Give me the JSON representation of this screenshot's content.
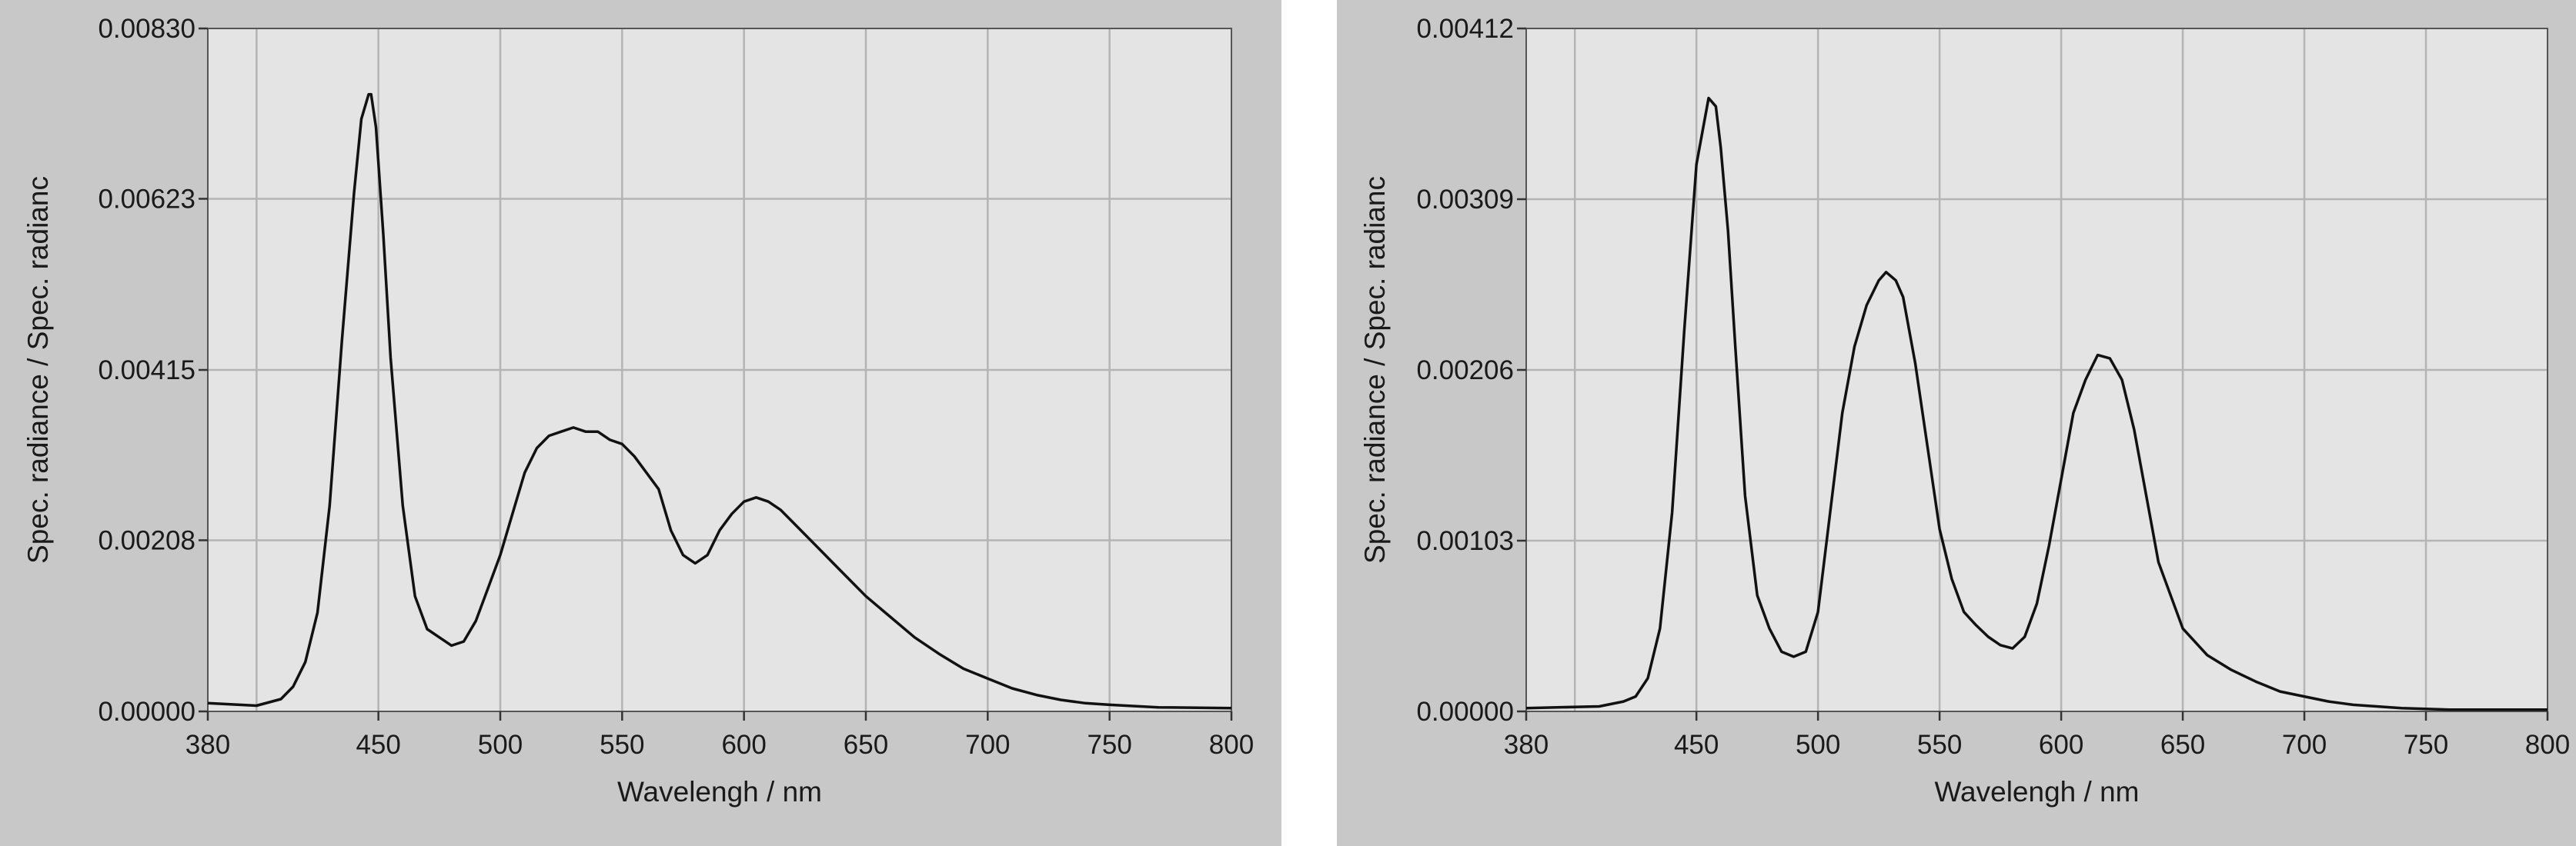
{
  "chart_data": [
    {
      "type": "line",
      "xlabel": "Wavelengh / nm",
      "ylabel": "Spec. radiance / Spec. radianc",
      "xlim": [
        380,
        800
      ],
      "ylim": [
        0,
        0.0083
      ],
      "x_ticks": [
        "380",
        "450",
        "500",
        "550",
        "600",
        "650",
        "700",
        "750",
        "800"
      ],
      "y_ticks": [
        "0.00000",
        "0.00208",
        "0.00415",
        "0.00623",
        "0.00830"
      ],
      "x_tick_values": [
        380,
        450,
        500,
        550,
        600,
        650,
        700,
        750,
        800
      ],
      "y_tick_values": [
        0,
        0.00208,
        0.00415,
        0.00623,
        0.0083
      ],
      "grid": true,
      "series": [
        {
          "x": [
            380,
            400,
            410,
            415,
            420,
            425,
            430,
            435,
            440,
            443,
            446,
            447,
            449,
            452,
            455,
            460,
            465,
            470,
            475,
            480,
            485,
            490,
            495,
            500,
            505,
            510,
            515,
            520,
            525,
            530,
            535,
            540,
            545,
            550,
            555,
            560,
            565,
            570,
            575,
            580,
            585,
            590,
            595,
            600,
            605,
            610,
            615,
            620,
            630,
            640,
            650,
            660,
            670,
            680,
            690,
            700,
            710,
            720,
            730,
            740,
            750,
            770,
            800
          ],
          "y": [
            0.0001,
            7e-05,
            0.00015,
            0.0003,
            0.0006,
            0.0012,
            0.0025,
            0.0045,
            0.0063,
            0.0072,
            0.0075,
            0.0075,
            0.0071,
            0.0058,
            0.0043,
            0.0025,
            0.0014,
            0.001,
            0.0009,
            0.0008,
            0.00085,
            0.0011,
            0.0015,
            0.0019,
            0.0024,
            0.0029,
            0.0032,
            0.00335,
            0.0034,
            0.00345,
            0.0034,
            0.0034,
            0.0033,
            0.00325,
            0.0031,
            0.0029,
            0.0027,
            0.0022,
            0.0019,
            0.0018,
            0.0019,
            0.0022,
            0.0024,
            0.00255,
            0.0026,
            0.00255,
            0.00245,
            0.0023,
            0.002,
            0.0017,
            0.0014,
            0.00115,
            0.0009,
            0.0007,
            0.00052,
            0.0004,
            0.00028,
            0.0002,
            0.00014,
            0.0001,
            8e-05,
            5e-05,
            4e-05
          ]
        }
      ]
    },
    {
      "type": "line",
      "xlabel": "Wavelengh / nm",
      "ylabel": "Spec. radiance / Spec. radianc",
      "xlim": [
        380,
        800
      ],
      "ylim": [
        0,
        0.00412
      ],
      "x_ticks": [
        "380",
        "450",
        "500",
        "550",
        "600",
        "650",
        "700",
        "750",
        "800"
      ],
      "y_ticks": [
        "0.00000",
        "0.00103",
        "0.00206",
        "0.00309",
        "0.00412"
      ],
      "x_tick_values": [
        380,
        450,
        500,
        550,
        600,
        650,
        700,
        750,
        800
      ],
      "y_tick_values": [
        0,
        0.00103,
        0.00206,
        0.00309,
        0.00412
      ],
      "grid": true,
      "series": [
        {
          "x": [
            380,
            410,
            420,
            425,
            430,
            435,
            440,
            445,
            450,
            455,
            458,
            460,
            463,
            466,
            470,
            475,
            480,
            485,
            490,
            495,
            500,
            505,
            510,
            515,
            520,
            525,
            528,
            532,
            535,
            540,
            545,
            550,
            555,
            560,
            565,
            570,
            575,
            580,
            585,
            590,
            595,
            600,
            605,
            610,
            615,
            620,
            625,
            630,
            635,
            640,
            650,
            660,
            670,
            680,
            690,
            700,
            710,
            720,
            740,
            760,
            800
          ],
          "y": [
            2e-05,
            3e-05,
            6e-05,
            9e-05,
            0.0002,
            0.0005,
            0.0012,
            0.0023,
            0.0033,
            0.0037,
            0.00365,
            0.0034,
            0.0029,
            0.0022,
            0.0013,
            0.0007,
            0.0005,
            0.00036,
            0.00033,
            0.00036,
            0.0006,
            0.0012,
            0.0018,
            0.0022,
            0.00245,
            0.0026,
            0.00265,
            0.0026,
            0.0025,
            0.0021,
            0.0016,
            0.0011,
            0.0008,
            0.0006,
            0.00052,
            0.00045,
            0.0004,
            0.00038,
            0.00045,
            0.00065,
            0.001,
            0.0014,
            0.0018,
            0.002,
            0.00215,
            0.00213,
            0.002,
            0.0017,
            0.0013,
            0.0009,
            0.0005,
            0.00034,
            0.00025,
            0.00018,
            0.00012,
            9e-05,
            6e-05,
            4e-05,
            2e-05,
            1e-05,
            1e-05
          ]
        }
      ]
    }
  ]
}
